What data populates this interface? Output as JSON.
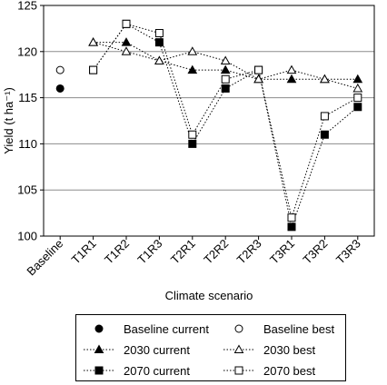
{
  "chart_data": {
    "type": "line",
    "ylabel": "Yield (t ha⁻¹)",
    "xlabel": "Climate scenario",
    "categories": [
      "Baseline",
      "T1R1",
      "T1R2",
      "T1R3",
      "T2R1",
      "T2R2",
      "T2R3",
      "T3R1",
      "T3R2",
      "T3R3"
    ],
    "ylim": [
      100,
      125
    ],
    "yticks": [
      100,
      105,
      110,
      115,
      120,
      125
    ],
    "grid": "horizontal",
    "legend_position": "bottom",
    "series": [
      {
        "name": "Baseline current",
        "marker": "filled-circle",
        "line": "none",
        "values": [
          116,
          null,
          null,
          null,
          null,
          null,
          null,
          null,
          null,
          null
        ]
      },
      {
        "name": "Baseline best",
        "marker": "open-circle",
        "line": "none",
        "values": [
          118,
          null,
          null,
          null,
          null,
          null,
          null,
          null,
          null,
          null
        ]
      },
      {
        "name": "2030 current",
        "marker": "filled-triangle",
        "line": "dotted",
        "values": [
          null,
          121,
          121,
          119,
          118,
          118,
          117,
          117,
          117,
          117
        ]
      },
      {
        "name": "2030 best",
        "marker": "open-triangle",
        "line": "dotted",
        "values": [
          null,
          121,
          120,
          119,
          120,
          119,
          117,
          118,
          117,
          116
        ]
      },
      {
        "name": "2070 current",
        "marker": "filled-square",
        "line": "dotted",
        "values": [
          null,
          118,
          123,
          121,
          110,
          116,
          118,
          101,
          111,
          114
        ]
      },
      {
        "name": "2070 best",
        "marker": "open-square",
        "line": "dotted",
        "values": [
          null,
          118,
          123,
          122,
          111,
          117,
          118,
          102,
          113,
          115
        ]
      }
    ]
  }
}
